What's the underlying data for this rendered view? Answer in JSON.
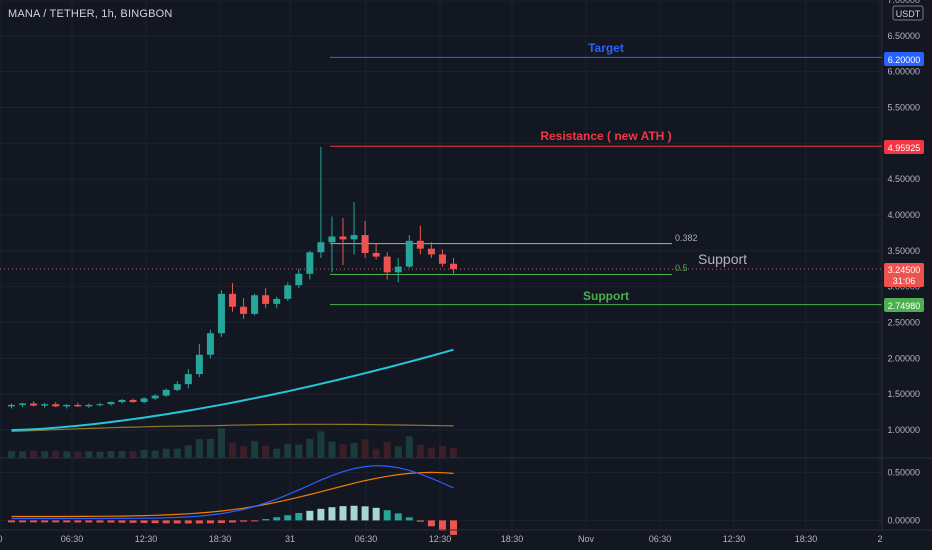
{
  "header": {
    "symbol_line": "MANA / TETHER, 1h, BINGBON"
  },
  "price_axis": {
    "currency": "USDT",
    "ticks": [
      "7.00000",
      "6.50000",
      "6.00000",
      "5.50000",
      "5.00000",
      "4.50000",
      "4.00000",
      "3.50000",
      "3.00000",
      "2.50000",
      "2.00000",
      "1.50000",
      "1.00000"
    ],
    "tick_values": [
      7.0,
      6.5,
      6.0,
      5.5,
      5.0,
      4.5,
      4.0,
      3.5,
      3.0,
      2.5,
      2.0,
      1.5,
      1.0
    ],
    "range": [
      0.8,
      7.0
    ]
  },
  "indicator_axis": {
    "ticks": [
      "0.50000",
      "0.00000"
    ],
    "tick_values": [
      0.5,
      0.0
    ],
    "range": [
      -0.1,
      0.65
    ]
  },
  "time_axis": {
    "ticks": [
      "0",
      "06:30",
      "12:30",
      "18:30",
      "31",
      "06:30",
      "12:30",
      "18:30",
      "Nov",
      "06:30",
      "12:30",
      "18:30",
      "2"
    ]
  },
  "badges": {
    "target": "6.20000",
    "resistance": "4.95925",
    "current_price": "3.24500",
    "countdown": "31:06",
    "support": "2.74980"
  },
  "annotations": {
    "target": "Target",
    "resistance": "Resistance ( new ATH )",
    "support_line": "Support",
    "support_note": "Support",
    "fib_382": "0.382",
    "fib_5": "0.5"
  },
  "levels": {
    "target": 6.2,
    "resistance": 4.95925,
    "fib_382": 3.6,
    "fib_5": 3.17,
    "support": 2.7498,
    "current": 3.245
  },
  "colors": {
    "bg": "#131722",
    "up": "#26a69a",
    "down": "#ef5350",
    "grid": "#1e222d",
    "target": "#2962ff",
    "resistance": "#f23645",
    "support": "#4caf50",
    "ma": "#26c6da",
    "ma2": "#8d7a2b",
    "macd": "#2962ff",
    "signal": "#f57c00"
  },
  "chart_data": {
    "type": "candlestick",
    "candles": [
      {
        "o": 1.33,
        "h": 1.37,
        "l": 1.3,
        "c": 1.35
      },
      {
        "o": 1.35,
        "h": 1.38,
        "l": 1.32,
        "c": 1.37
      },
      {
        "o": 1.37,
        "h": 1.4,
        "l": 1.33,
        "c": 1.34
      },
      {
        "o": 1.34,
        "h": 1.38,
        "l": 1.31,
        "c": 1.36
      },
      {
        "o": 1.36,
        "h": 1.39,
        "l": 1.32,
        "c": 1.33
      },
      {
        "o": 1.33,
        "h": 1.36,
        "l": 1.3,
        "c": 1.35
      },
      {
        "o": 1.35,
        "h": 1.38,
        "l": 1.32,
        "c": 1.33
      },
      {
        "o": 1.33,
        "h": 1.37,
        "l": 1.31,
        "c": 1.35
      },
      {
        "o": 1.35,
        "h": 1.38,
        "l": 1.33,
        "c": 1.36
      },
      {
        "o": 1.36,
        "h": 1.4,
        "l": 1.34,
        "c": 1.39
      },
      {
        "o": 1.39,
        "h": 1.43,
        "l": 1.37,
        "c": 1.42
      },
      {
        "o": 1.42,
        "h": 1.44,
        "l": 1.38,
        "c": 1.39
      },
      {
        "o": 1.39,
        "h": 1.46,
        "l": 1.37,
        "c": 1.44
      },
      {
        "o": 1.44,
        "h": 1.5,
        "l": 1.42,
        "c": 1.48
      },
      {
        "o": 1.48,
        "h": 1.58,
        "l": 1.46,
        "c": 1.56
      },
      {
        "o": 1.56,
        "h": 1.68,
        "l": 1.54,
        "c": 1.64
      },
      {
        "o": 1.64,
        "h": 1.85,
        "l": 1.58,
        "c": 1.78
      },
      {
        "o": 1.78,
        "h": 2.2,
        "l": 1.74,
        "c": 2.05
      },
      {
        "o": 2.05,
        "h": 2.4,
        "l": 2.0,
        "c": 2.35
      },
      {
        "o": 2.35,
        "h": 2.95,
        "l": 2.3,
        "c": 2.9
      },
      {
        "o": 2.9,
        "h": 3.05,
        "l": 2.65,
        "c": 2.72
      },
      {
        "o": 2.72,
        "h": 2.84,
        "l": 2.55,
        "c": 2.62
      },
      {
        "o": 2.62,
        "h": 2.9,
        "l": 2.6,
        "c": 2.88
      },
      {
        "o": 2.88,
        "h": 2.98,
        "l": 2.7,
        "c": 2.76
      },
      {
        "o": 2.76,
        "h": 2.86,
        "l": 2.7,
        "c": 2.83
      },
      {
        "o": 2.83,
        "h": 3.06,
        "l": 2.8,
        "c": 3.02
      },
      {
        "o": 3.02,
        "h": 3.25,
        "l": 2.98,
        "c": 3.18
      },
      {
        "o": 3.18,
        "h": 3.5,
        "l": 3.1,
        "c": 3.48
      },
      {
        "o": 3.48,
        "h": 4.95,
        "l": 3.4,
        "c": 3.62
      },
      {
        "o": 3.62,
        "h": 3.98,
        "l": 3.2,
        "c": 3.7
      },
      {
        "o": 3.7,
        "h": 3.96,
        "l": 3.3,
        "c": 3.66
      },
      {
        "o": 3.66,
        "h": 4.18,
        "l": 3.45,
        "c": 3.72
      },
      {
        "o": 3.72,
        "h": 3.92,
        "l": 3.4,
        "c": 3.47
      },
      {
        "o": 3.47,
        "h": 3.6,
        "l": 3.38,
        "c": 3.42
      },
      {
        "o": 3.42,
        "h": 3.48,
        "l": 3.1,
        "c": 3.2
      },
      {
        "o": 3.2,
        "h": 3.4,
        "l": 3.06,
        "c": 3.28
      },
      {
        "o": 3.28,
        "h": 3.72,
        "l": 3.26,
        "c": 3.64
      },
      {
        "o": 3.64,
        "h": 3.85,
        "l": 3.45,
        "c": 3.53
      },
      {
        "o": 3.53,
        "h": 3.62,
        "l": 3.4,
        "c": 3.45
      },
      {
        "o": 3.45,
        "h": 3.52,
        "l": 3.28,
        "c": 3.32
      },
      {
        "o": 3.32,
        "h": 3.4,
        "l": 3.18,
        "c": 3.245
      }
    ]
  }
}
